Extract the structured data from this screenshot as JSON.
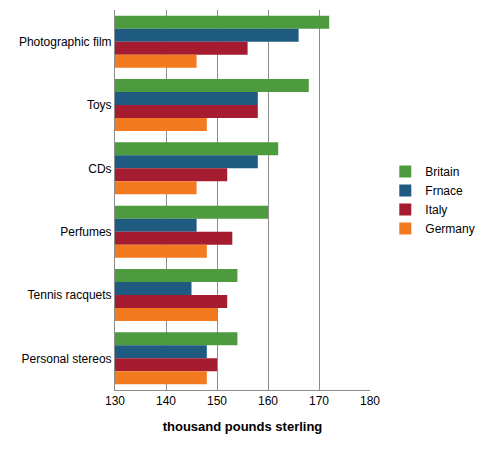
{
  "chart_data": {
    "type": "bar",
    "orientation": "horizontal",
    "x_label": "thousand pounds sterling",
    "categories": [
      "Photographic film",
      "Toys",
      "CDs",
      "Perfumes",
      "Tennis racquets",
      "Personal stereos"
    ],
    "series": [
      {
        "name": "Britain",
        "color": "#4e9a3f",
        "values": [
          172,
          168,
          162,
          160,
          154,
          154
        ]
      },
      {
        "name": "Frnace",
        "color": "#1f5a80",
        "values": [
          166,
          158,
          158,
          146,
          145,
          148
        ]
      },
      {
        "name": "Italy",
        "color": "#a51b30",
        "values": [
          156,
          158,
          152,
          153,
          152,
          150
        ]
      },
      {
        "name": "Germany",
        "color": "#f47a1f",
        "values": [
          146,
          148,
          146,
          148,
          150,
          148
        ]
      }
    ],
    "xlim": [
      130,
      180
    ],
    "xticks": [
      130,
      140,
      150,
      160,
      170,
      180
    ],
    "grid": true,
    "legend": "right"
  }
}
